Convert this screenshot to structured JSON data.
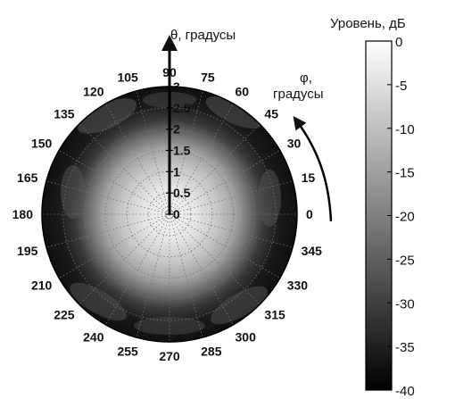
{
  "chart_data": {
    "type": "heatmap",
    "projection": "polar",
    "title": "",
    "theta_axis": {
      "label": "θ, градусы",
      "range": [
        0,
        3
      ],
      "ticks": [
        "0",
        "0.5",
        "1",
        "1.5",
        "2",
        "2.5",
        "3"
      ],
      "tick_values": [
        0,
        0.5,
        1,
        1.5,
        2,
        2.5,
        3
      ]
    },
    "phi_axis": {
      "label_line1": "φ,",
      "label_line2": "градусы",
      "ticks": [
        "0",
        "15",
        "30",
        "45",
        "60",
        "75",
        "90",
        "105",
        "120",
        "135",
        "150",
        "165",
        "180",
        "195",
        "210",
        "225",
        "240",
        "255",
        "270",
        "285",
        "300",
        "315",
        "330",
        "345"
      ],
      "tick_values": [
        0,
        15,
        30,
        45,
        60,
        75,
        90,
        105,
        120,
        135,
        150,
        165,
        180,
        195,
        210,
        225,
        240,
        255,
        270,
        285,
        300,
        315,
        330,
        345
      ]
    },
    "colorbar": {
      "label": "Уровень, дБ",
      "range": [
        -40,
        0
      ],
      "ticks": [
        "0",
        "-5",
        "-10",
        "-15",
        "-20",
        "-25",
        "-30",
        "-35",
        "-40"
      ],
      "tick_values": [
        0,
        -5,
        -10,
        -15,
        -20,
        -25,
        -30,
        -35,
        -40
      ],
      "colormap": "gray"
    },
    "level_profile": {
      "theta": [
        0,
        0.5,
        1.0,
        1.5,
        1.8,
        2.2,
        2.6,
        3.0
      ],
      "level_db": [
        0,
        -3,
        -8,
        -16,
        -22,
        -30,
        -37,
        -40
      ]
    },
    "grid": true
  }
}
